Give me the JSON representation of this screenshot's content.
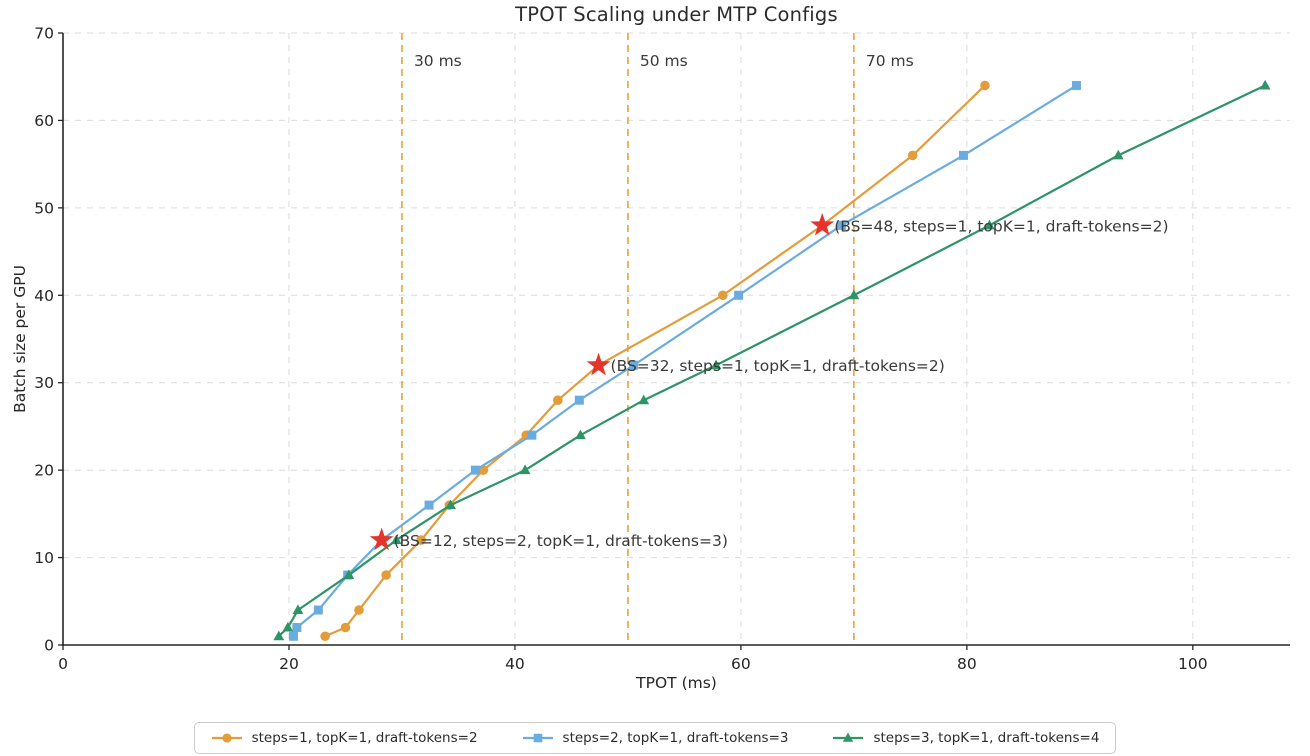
{
  "title": "TPOT Scaling under MTP Configs",
  "chart_data": {
    "type": "line",
    "title": "TPOT Scaling under MTP Configs",
    "xlabel": "TPOT (ms)",
    "ylabel": "Batch size per GPU",
    "xlim": [
      0,
      108.6
    ],
    "ylim": [
      0,
      70
    ],
    "xticks": [
      0,
      20,
      40,
      60,
      80,
      100
    ],
    "yticks": [
      0,
      10,
      20,
      30,
      40,
      50,
      60,
      70
    ],
    "grid": true,
    "legend_position": "bottom-center",
    "batch_sizes": [
      1,
      2,
      4,
      8,
      12,
      16,
      20,
      24,
      28,
      32,
      40,
      48,
      56,
      64
    ],
    "series": [
      {
        "name": "steps=1, topK=1, draft-tokens=2",
        "marker": "circle",
        "color": "#E39C3A",
        "points": [
          [
            23.2,
            1
          ],
          [
            25.0,
            2
          ],
          [
            26.2,
            4
          ],
          [
            28.6,
            8
          ],
          [
            31.7,
            12
          ],
          [
            34.2,
            16
          ],
          [
            37.2,
            20
          ],
          [
            41.0,
            24
          ],
          [
            43.8,
            28
          ],
          [
            47.4,
            32
          ],
          [
            58.4,
            40
          ],
          [
            67.2,
            48
          ],
          [
            75.2,
            56
          ],
          [
            81.6,
            64
          ]
        ]
      },
      {
        "name": "steps=2, topK=1, draft-tokens=3",
        "marker": "square",
        "color": "#6AACDF",
        "points": [
          [
            20.4,
            1
          ],
          [
            20.7,
            2
          ],
          [
            22.6,
            4
          ],
          [
            25.2,
            8
          ],
          [
            28.2,
            12
          ],
          [
            32.4,
            16
          ],
          [
            36.5,
            20
          ],
          [
            41.5,
            24
          ],
          [
            45.7,
            28
          ],
          [
            50.5,
            32
          ],
          [
            59.8,
            40
          ],
          [
            68.9,
            48
          ],
          [
            79.7,
            56
          ],
          [
            89.7,
            64
          ]
        ]
      },
      {
        "name": "steps=3, topK=1, draft-tokens=4",
        "marker": "triangle-up",
        "color": "#2E9467",
        "points": [
          [
            19.1,
            1
          ],
          [
            19.9,
            2
          ],
          [
            20.8,
            4
          ],
          [
            25.3,
            8
          ],
          [
            29.5,
            12
          ],
          [
            34.3,
            16
          ],
          [
            40.9,
            20
          ],
          [
            45.8,
            24
          ],
          [
            51.4,
            28
          ],
          [
            57.8,
            32
          ],
          [
            70.0,
            40
          ],
          [
            82.0,
            48
          ],
          [
            93.4,
            56
          ],
          [
            106.4,
            64
          ]
        ]
      }
    ],
    "reference_lines": [
      {
        "x": 30,
        "label": "30 ms",
        "color": "#E8A33C",
        "style": "dashed"
      },
      {
        "x": 50,
        "label": "50 ms",
        "color": "#E8A33C",
        "style": "dashed"
      },
      {
        "x": 70,
        "label": "70 ms",
        "color": "#E8A33C",
        "style": "dashed"
      }
    ],
    "annotations": [
      {
        "x": 28.2,
        "y": 12,
        "marker": "star",
        "color": "#E5342B",
        "text": "(BS=12, steps=2, topK=1, draft-tokens=3)"
      },
      {
        "x": 47.4,
        "y": 32,
        "marker": "star",
        "color": "#E5342B",
        "text": "(BS=32, steps=1, topK=1, draft-tokens=2)"
      },
      {
        "x": 67.2,
        "y": 48,
        "marker": "star",
        "color": "#E5342B",
        "text": "(BS=48, steps=1, topK=1, draft-tokens=2)"
      }
    ]
  },
  "colors": {
    "grid": "#DBDBDB",
    "axis": "#262626",
    "tick_text": "#262626",
    "annotation_text": "#3A3A3A",
    "background": "#FFFFFF",
    "reference_line": "#E8A33C",
    "highlight_star": "#E5342B"
  }
}
